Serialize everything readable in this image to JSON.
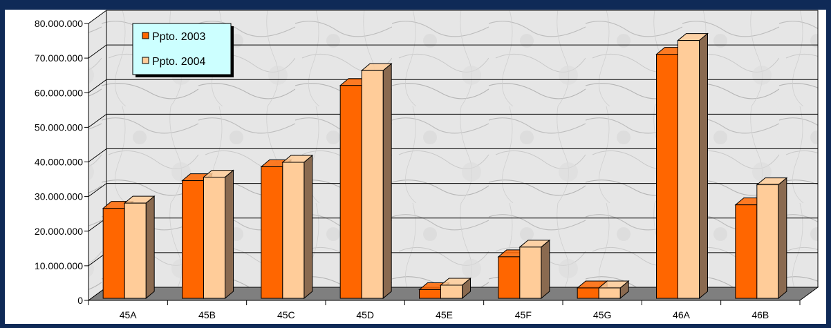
{
  "chart_data": {
    "type": "bar",
    "categories": [
      "45A",
      "45B",
      "45C",
      "45D",
      "45E",
      "45F",
      "45G",
      "46A",
      "46B"
    ],
    "series": [
      {
        "name": "Ppto. 2003",
        "values": [
          26000000,
          34000000,
          38000000,
          61500000,
          2500000,
          12000000,
          3000000,
          70500000,
          27000000
        ]
      },
      {
        "name": "Ppto. 2004",
        "values": [
          27500000,
          35000000,
          39300000,
          65800000,
          3800000,
          14800000,
          3000000,
          74500000,
          32800000
        ]
      }
    ],
    "yticks": [
      "0",
      "10.000.000",
      "20.000.000",
      "30.000.000",
      "40.000.000",
      "50.000.000",
      "60.000.000",
      "70.000.000",
      "80.000.000"
    ],
    "ylim": [
      0,
      80000000
    ],
    "grid": true,
    "legend_position": "top-left"
  },
  "colors": {
    "frame": "#0f2a57",
    "series_2003": "#ff6600",
    "series_2003_side": "#a64200",
    "series_2004": "#ffcc99",
    "series_2004_side": "#8a6a50",
    "floor": "#7f7f7f",
    "legend_bg": "#ccffff"
  }
}
